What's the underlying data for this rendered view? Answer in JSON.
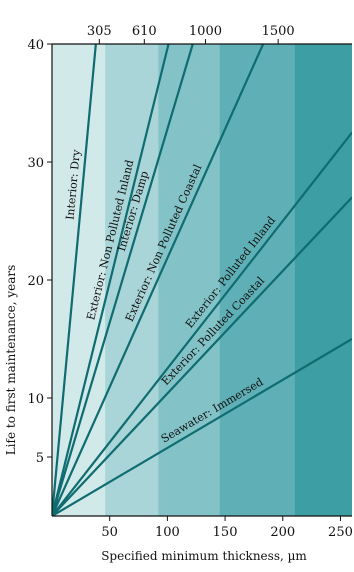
{
  "chart_data": {
    "type": "line",
    "xlabel": "Specified minimum thickness, µm",
    "ylabel": "Life to first maintenance, years",
    "xlim": [
      0,
      260
    ],
    "ylim": [
      0,
      40
    ],
    "x_ticks": [
      50,
      100,
      150,
      200,
      250
    ],
    "y_ticks": [
      5,
      10,
      20,
      30,
      40
    ],
    "top_ticks": [
      {
        "label": "305",
        "x": 41
      },
      {
        "label": "610",
        "x": 80
      },
      {
        "label": "1000",
        "x": 133
      },
      {
        "label": "1500",
        "x": 196
      }
    ],
    "background_bands": [
      {
        "from": 0,
        "to": 46,
        "color": "#d2e9ea"
      },
      {
        "from": 46,
        "to": 92,
        "color": "#a9d5d8"
      },
      {
        "from": 92,
        "to": 145,
        "color": "#83c3c7"
      },
      {
        "from": 145,
        "to": 210,
        "color": "#5fb0b6"
      },
      {
        "from": 210,
        "to": 260,
        "color": "#3d9ea4"
      }
    ],
    "line_color": "#0f6c70",
    "series": [
      {
        "name": "Interior: Dry",
        "x": [
          0,
          38
        ],
        "y": [
          0,
          40
        ]
      },
      {
        "name": "Exterior: Non Polluted Inland",
        "x": [
          0,
          101
        ],
        "y": [
          0,
          40
        ]
      },
      {
        "name": "Interior: Damp",
        "x": [
          0,
          122
        ],
        "y": [
          0,
          40
        ]
      },
      {
        "name": "Exterior: Non Polluted Coastal",
        "x": [
          0,
          183
        ],
        "y": [
          0,
          40
        ]
      },
      {
        "name": "Exterior: Polluted Inland",
        "x": [
          0,
          260
        ],
        "y": [
          0,
          32.5
        ]
      },
      {
        "name": "Exterior: Polluted Coastal",
        "x": [
          0,
          260
        ],
        "y": [
          0,
          27
        ]
      },
      {
        "name": "Seawater: Immersed",
        "x": [
          0,
          260
        ],
        "y": [
          0,
          15
        ]
      }
    ]
  }
}
